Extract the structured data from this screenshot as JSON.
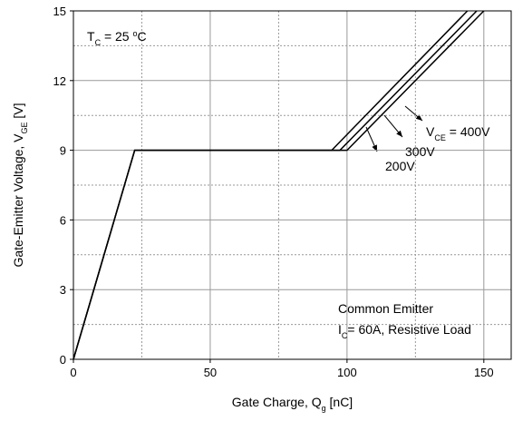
{
  "chart_data": {
    "type": "line",
    "x_label": [
      {
        "text": "Gate Charge, Q"
      },
      {
        "text": "g",
        "sub": true
      },
      {
        "text": " [nC]"
      }
    ],
    "y_label": [
      {
        "text": "Gate-Emitter Voltage, V"
      },
      {
        "text": "GE",
        "sub": true
      },
      {
        "text": " [V]"
      }
    ],
    "series_label_prefix": [
      {
        "text": "V"
      },
      {
        "text": "CE",
        "sub": true
      },
      {
        "text": " = "
      }
    ],
    "series": [
      {
        "name": "400V",
        "color": "#000000",
        "x": [
          0,
          22.4,
          94.4,
          144
        ],
        "values": [
          0,
          9,
          9,
          15
        ]
      },
      {
        "name": "300V",
        "color": "#000000",
        "x": [
          0,
          22.4,
          97.4,
          147.4
        ],
        "values": [
          0,
          9,
          9,
          15
        ]
      },
      {
        "name": "200V",
        "color": "#000000",
        "x": [
          0,
          22.4,
          100,
          150
        ],
        "values": [
          0,
          9,
          9,
          15
        ]
      }
    ],
    "annotations": [
      [
        {
          "text": "T"
        },
        {
          "text": "C",
          "sub": true
        },
        {
          "text": " = 25 "
        },
        {
          "text": "o",
          "sup": true
        },
        {
          "text": "C"
        }
      ],
      [
        {
          "text": "Common Emitter"
        }
      ],
      [
        {
          "text": "I"
        },
        {
          "text": "C",
          "sub": true
        },
        {
          "text": "= 60A, Resistive Load"
        }
      ]
    ],
    "xlim": [
      0,
      160
    ],
    "ylim": [
      0,
      15
    ],
    "xticks": [
      0,
      50,
      100,
      150
    ],
    "yticks": [
      0,
      3,
      6,
      9,
      12,
      15
    ],
    "grid": true,
    "minor_grid": true
  }
}
